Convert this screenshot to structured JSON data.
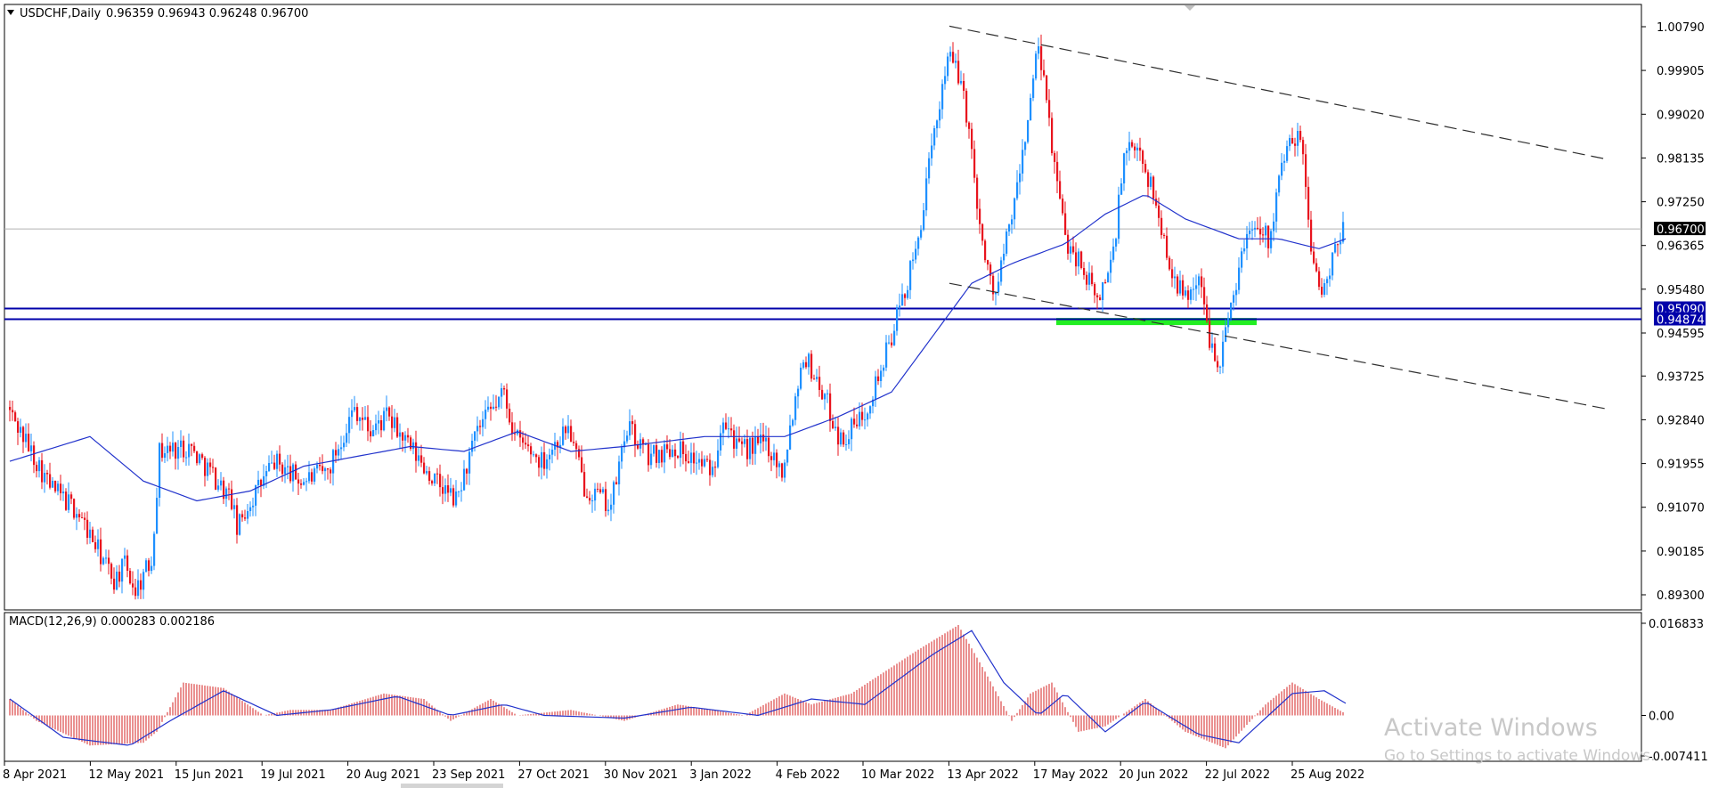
{
  "header": {
    "symbol_info": "USDCHF,Daily",
    "ohlc": "0.96359 0.96943 0.96248 0.96700"
  },
  "macd_label": "MACD(12,26,9) 0.000283 0.002186",
  "watermark": {
    "line1": "Activate Windows",
    "line2": "Go to Settings to activate Windows."
  },
  "colors": {
    "bull": "#1E90FF",
    "bear": "#E8141E",
    "ma": "#2233CC",
    "signal": "#2233CC",
    "hist": "#E06060",
    "level": "#0000AA",
    "zone": "#22EE22",
    "trend": "#303030",
    "current": "#000000"
  },
  "chart_data": [
    {
      "type": "candlestick",
      "symbol": "USDCHF",
      "timeframe": "Daily",
      "y_ticks": [
        "1.00790",
        "0.99905",
        "0.99020",
        "0.98135",
        "0.97250",
        "0.96365",
        "0.95480",
        "0.94595",
        "0.93725",
        "0.92840",
        "0.91955",
        "0.91070",
        "0.90185",
        "0.89300"
      ],
      "ylim": [
        0.8903,
        1.0095
      ],
      "x_ticks": [
        "8 Apr 2021",
        "12 May 2021",
        "15 Jun 2021",
        "19 Jul 2021",
        "20 Aug 2021",
        "23 Sep 2021",
        "27 Oct 2021",
        "30 Nov 2021",
        "3 Jan 2022",
        "4 Feb 2022",
        "10 Mar 2022",
        "13 Apr 2022",
        "17 May 2022",
        "20 Jun 2022",
        "22 Jul 2022",
        "25 Aug 2022"
      ],
      "price_path": [
        [
          0,
          0.931
        ],
        [
          16,
          0.915
        ],
        [
          26,
          0.91
        ],
        [
          40,
          0.896
        ],
        [
          44,
          0.899
        ],
        [
          48,
          0.894
        ],
        [
          54,
          0.9
        ],
        [
          57,
          0.922
        ],
        [
          68,
          0.923
        ],
        [
          76,
          0.918
        ],
        [
          84,
          0.912
        ],
        [
          86,
          0.906
        ],
        [
          90,
          0.911
        ],
        [
          100,
          0.92
        ],
        [
          110,
          0.916
        ],
        [
          120,
          0.918
        ],
        [
          130,
          0.931
        ],
        [
          136,
          0.926
        ],
        [
          142,
          0.929
        ],
        [
          160,
          0.916
        ],
        [
          168,
          0.912
        ],
        [
          176,
          0.926
        ],
        [
          186,
          0.934
        ],
        [
          190,
          0.925
        ],
        [
          200,
          0.92
        ],
        [
          210,
          0.927
        ],
        [
          216,
          0.915
        ],
        [
          226,
          0.911
        ],
        [
          232,
          0.927
        ],
        [
          240,
          0.921
        ],
        [
          250,
          0.923
        ],
        [
          264,
          0.918
        ],
        [
          268,
          0.93
        ],
        [
          274,
          0.922
        ],
        [
          284,
          0.924
        ],
        [
          290,
          0.918
        ],
        [
          298,
          0.942
        ],
        [
          306,
          0.933
        ],
        [
          312,
          0.924
        ],
        [
          320,
          0.929
        ],
        [
          328,
          0.94
        ],
        [
          340,
          0.962
        ],
        [
          352,
          1.003
        ],
        [
          358,
          0.995
        ],
        [
          366,
          0.96
        ],
        [
          370,
          0.954
        ],
        [
          378,
          0.975
        ],
        [
          386,
          1.004
        ],
        [
          392,
          0.98
        ],
        [
          396,
          0.965
        ],
        [
          402,
          0.96
        ],
        [
          408,
          0.952
        ],
        [
          414,
          0.962
        ],
        [
          418,
          0.982
        ],
        [
          424,
          0.983
        ],
        [
          430,
          0.972
        ],
        [
          434,
          0.962
        ],
        [
          440,
          0.953
        ],
        [
          446,
          0.957
        ],
        [
          450,
          0.945
        ],
        [
          454,
          0.94
        ],
        [
          458,
          0.952
        ],
        [
          464,
          0.966
        ],
        [
          468,
          0.969
        ],
        [
          472,
          0.965
        ],
        [
          478,
          0.982
        ],
        [
          484,
          0.986
        ],
        [
          488,
          0.964
        ],
        [
          492,
          0.953
        ],
        [
          496,
          0.96
        ],
        [
          500,
          0.967
        ]
      ],
      "ma_path": [
        [
          0,
          0.92
        ],
        [
          30,
          0.925
        ],
        [
          50,
          0.916
        ],
        [
          70,
          0.912
        ],
        [
          90,
          0.914
        ],
        [
          110,
          0.919
        ],
        [
          130,
          0.921
        ],
        [
          150,
          0.923
        ],
        [
          170,
          0.922
        ],
        [
          190,
          0.926
        ],
        [
          210,
          0.922
        ],
        [
          230,
          0.923
        ],
        [
          260,
          0.925
        ],
        [
          290,
          0.925
        ],
        [
          310,
          0.929
        ],
        [
          330,
          0.934
        ],
        [
          345,
          0.945
        ],
        [
          360,
          0.956
        ],
        [
          375,
          0.96
        ],
        [
          395,
          0.964
        ],
        [
          410,
          0.97
        ],
        [
          425,
          0.974
        ],
        [
          440,
          0.969
        ],
        [
          460,
          0.965
        ],
        [
          475,
          0.965
        ],
        [
          490,
          0.963
        ],
        [
          500,
          0.965
        ]
      ],
      "bars": 500,
      "current_price": "0.96700",
      "levels": [
        "0.95090",
        "0.94874"
      ],
      "support_zone": [
        0.9488,
        0.9507
      ],
      "channel": {
        "upper": [
          [
            352,
            1.008
          ],
          [
            599,
            0.981
          ]
        ],
        "lower": [
          [
            352,
            0.956
          ],
          [
            599,
            0.9305
          ]
        ]
      }
    },
    {
      "type": "bar",
      "indicator": "MACD",
      "params": "12,26,9",
      "values_last": [
        0.000283,
        0.002186
      ],
      "y_ticks": [
        "0.016833",
        "0.00",
        "-0.007411"
      ],
      "ylim": [
        -0.0074,
        0.0174
      ],
      "hist_path": [
        [
          0,
          0.003
        ],
        [
          10,
          -0.001
        ],
        [
          30,
          -0.0055
        ],
        [
          50,
          -0.005
        ],
        [
          55,
          -0.003
        ],
        [
          65,
          0.006
        ],
        [
          80,
          0.005
        ],
        [
          95,
          0.0
        ],
        [
          105,
          0.001
        ],
        [
          120,
          0.001
        ],
        [
          140,
          0.004
        ],
        [
          155,
          0.003
        ],
        [
          165,
          -0.001
        ],
        [
          180,
          0.003
        ],
        [
          190,
          0.0
        ],
        [
          210,
          0.001
        ],
        [
          230,
          -0.001
        ],
        [
          250,
          0.002
        ],
        [
          275,
          0.0
        ],
        [
          290,
          0.004
        ],
        [
          300,
          0.002
        ],
        [
          315,
          0.004
        ],
        [
          340,
          0.012
        ],
        [
          355,
          0.0165
        ],
        [
          365,
          0.008
        ],
        [
          375,
          -0.001
        ],
        [
          382,
          0.004
        ],
        [
          390,
          0.006
        ],
        [
          400,
          -0.003
        ],
        [
          410,
          -0.002
        ],
        [
          425,
          0.003
        ],
        [
          440,
          -0.003
        ],
        [
          455,
          -0.006
        ],
        [
          470,
          0.002
        ],
        [
          480,
          0.006
        ],
        [
          490,
          0.003
        ],
        [
          500,
          0.0003
        ]
      ],
      "signal_path": [
        [
          0,
          0.003
        ],
        [
          20,
          -0.004
        ],
        [
          45,
          -0.0055
        ],
        [
          60,
          -0.001
        ],
        [
          80,
          0.0045
        ],
        [
          100,
          0.0
        ],
        [
          120,
          0.001
        ],
        [
          145,
          0.0035
        ],
        [
          165,
          0.0
        ],
        [
          185,
          0.002
        ],
        [
          200,
          0.0
        ],
        [
          230,
          -0.0005
        ],
        [
          255,
          0.0015
        ],
        [
          280,
          0.0
        ],
        [
          300,
          0.003
        ],
        [
          320,
          0.002
        ],
        [
          345,
          0.011
        ],
        [
          360,
          0.0155
        ],
        [
          372,
          0.006
        ],
        [
          385,
          0.0
        ],
        [
          395,
          0.004
        ],
        [
          410,
          -0.003
        ],
        [
          425,
          0.0025
        ],
        [
          445,
          -0.0035
        ],
        [
          460,
          -0.005
        ],
        [
          480,
          0.004
        ],
        [
          492,
          0.0045
        ],
        [
          500,
          0.0022
        ]
      ]
    }
  ]
}
